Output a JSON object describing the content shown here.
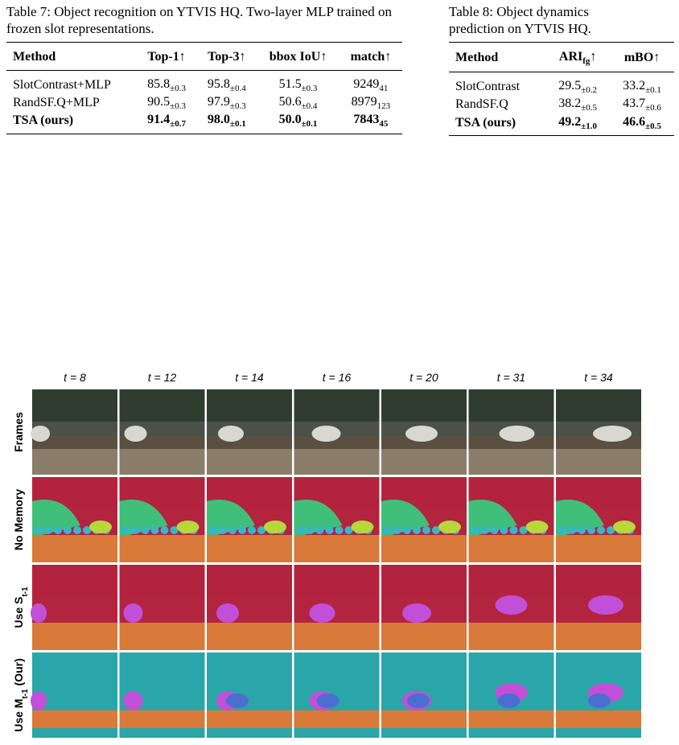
{
  "table7": {
    "caption": "Table 7: Object recognition on YTVIS HQ. Two-layer MLP trained on frozen slot representations.",
    "headers": [
      "Method",
      "Top-1↑",
      "Top-3↑",
      "bbox IoU↑",
      "match↑"
    ],
    "rows": [
      [
        "SlotContrast+MLP",
        {
          "value": "85.8",
          "pm": "±0.3"
        },
        {
          "value": "95.8",
          "pm": "±0.4"
        },
        {
          "value": "51.5",
          "pm": "±0.3"
        },
        {
          "value": "9249",
          "pm": "41"
        }
      ],
      [
        "RandSF.Q+MLP",
        {
          "value": "90.5",
          "pm": "±0.3"
        },
        {
          "value": "97.9",
          "pm": "±0.3"
        },
        {
          "value": "50.6",
          "pm": "±0.4"
        },
        {
          "value": "8979",
          "pm": "123"
        }
      ],
      [
        "TSA (ours)",
        {
          "value": "91.4",
          "pm": "±0.7"
        },
        {
          "value": "98.0",
          "pm": "±0.1"
        },
        {
          "value": "50.0",
          "pm": "±0.1"
        },
        {
          "value": "7843",
          "pm": "45"
        }
      ]
    ]
  },
  "table8": {
    "caption": "Table 8: Object dynamics prediction on YTVIS HQ.",
    "headers": [
      "Method",
      {
        "text": "ARI",
        "sub": "fg",
        "suffix": "↑"
      },
      "mBO↑"
    ],
    "rows": [
      [
        "SlotContrast",
        {
          "value": "29.5",
          "pm": "±0.2"
        },
        {
          "value": "33.2",
          "pm": "±0.1"
        }
      ],
      [
        "RandSF.Q",
        {
          "value": "38.2",
          "pm": "±0.5"
        },
        {
          "value": "43.7",
          "pm": "±0.6"
        }
      ],
      [
        "TSA (ours)",
        {
          "value": "49.2",
          "pm": "±1.0"
        },
        {
          "value": "46.6",
          "pm": "±0.5"
        }
      ]
    ]
  },
  "figure": {
    "columns": [
      "t = 8",
      "t = 12",
      "t = 14",
      "t = 16",
      "t = 20",
      "t = 31",
      "t = 34"
    ],
    "rows": [
      {
        "text": "Frames"
      },
      {
        "text": "No Memory"
      },
      {
        "text": "Use S",
        "sub": "t-1"
      },
      {
        "text": "Use M",
        "sub": "t-1",
        "suffix": " (Our)"
      }
    ]
  }
}
